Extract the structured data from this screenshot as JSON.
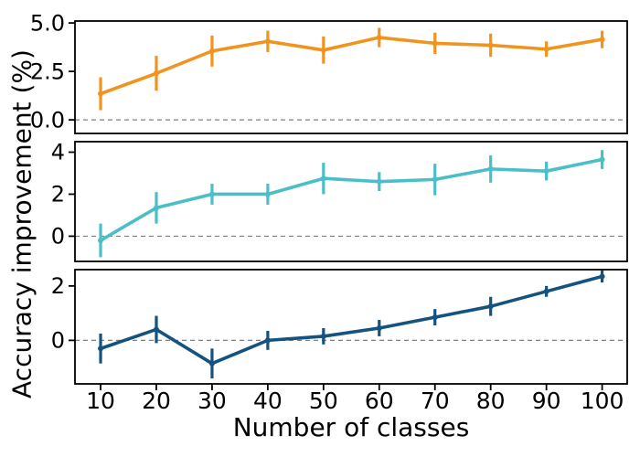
{
  "chart_data": {
    "type": "line",
    "title": "",
    "xlabel": "Number of classes",
    "ylabel": "Accuracy improvement (%)",
    "x": [
      10,
      20,
      30,
      40,
      50,
      60,
      70,
      80,
      90,
      100
    ],
    "x_tick_labels": [
      "10",
      "20",
      "30",
      "40",
      "50",
      "60",
      "70",
      "80",
      "90",
      "100"
    ],
    "xlim": [
      5.4,
      104.5
    ],
    "grid": false,
    "legend": "none",
    "zero_line": {
      "color": "#7f7f7f",
      "style": "dashed"
    },
    "frame_color": "#000000",
    "panels": [
      {
        "position": "top",
        "series_color": "#F0941E",
        "ylim": [
          -0.7,
          5.1
        ],
        "yticks": [
          0,
          2.5,
          5
        ],
        "ytick_labels": [
          "0.0",
          "2.5",
          "5.0"
        ],
        "values": [
          1.35,
          2.4,
          3.55,
          4.05,
          3.6,
          4.25,
          3.95,
          3.85,
          3.65,
          4.15
        ],
        "errors": [
          0.85,
          0.9,
          0.8,
          0.55,
          0.7,
          0.5,
          0.55,
          0.6,
          0.4,
          0.45
        ]
      },
      {
        "position": "middle",
        "series_color": "#4BBFC8",
        "ylim": [
          -1.2,
          4.5
        ],
        "yticks": [
          0,
          2,
          4
        ],
        "ytick_labels": [
          "0",
          "2",
          "4"
        ],
        "values": [
          -0.2,
          1.35,
          2.0,
          2.0,
          2.75,
          2.6,
          2.7,
          3.2,
          3.1,
          3.65
        ],
        "errors": [
          0.8,
          0.75,
          0.5,
          0.5,
          0.75,
          0.45,
          0.75,
          0.65,
          0.45,
          0.45
        ]
      },
      {
        "position": "bottom",
        "series_color": "#14537F",
        "ylim": [
          -1.6,
          2.6
        ],
        "yticks": [
          0,
          2
        ],
        "ytick_labels": [
          "0",
          "2"
        ],
        "values": [
          -0.3,
          0.4,
          -0.85,
          0.0,
          0.15,
          0.45,
          0.85,
          1.25,
          1.8,
          2.35
        ],
        "errors": [
          0.55,
          0.5,
          0.55,
          0.35,
          0.3,
          0.3,
          0.3,
          0.35,
          0.2,
          0.22
        ]
      }
    ]
  }
}
